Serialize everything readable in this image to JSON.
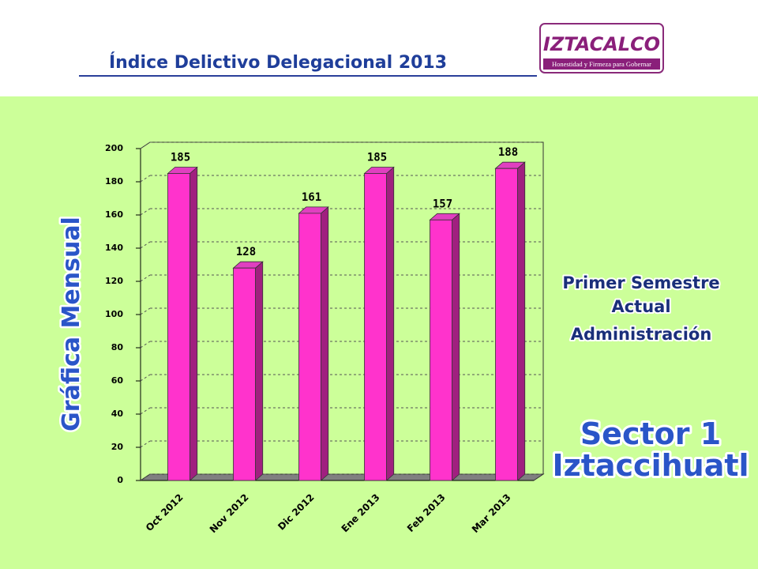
{
  "header": {
    "title": "Índice Delictivo Delegacional 2013",
    "logo_text": "IZTACALCO",
    "logo_tagline": "Honestidad y Firmeza para Gobernar"
  },
  "side_label": "Gráfica Mensual",
  "note": [
    "Primer Semestre",
    "Actual",
    "Administración"
  ],
  "sector": [
    "Sector 1",
    "Iztaccihuatl"
  ],
  "chart_data": {
    "type": "bar",
    "categories": [
      "Oct 2012",
      "Nov 2012",
      "Dic 2012",
      "Ene 2013",
      "Feb 2013",
      "Mar 2013"
    ],
    "values": [
      185,
      128,
      161,
      185,
      157,
      188
    ],
    "color": "#ff33cc",
    "ylim": [
      0,
      200
    ],
    "yticks": [
      0,
      20,
      40,
      60,
      80,
      100,
      120,
      140,
      160,
      180,
      200
    ],
    "grid": true
  }
}
